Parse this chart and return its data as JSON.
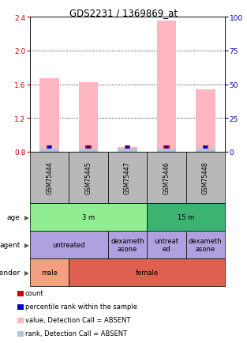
{
  "title": "GDS2231 / 1369869_at",
  "samples": [
    "GSM75444",
    "GSM75445",
    "GSM75447",
    "GSM75446",
    "GSM75448"
  ],
  "bar_values": [
    1.67,
    1.62,
    0.86,
    2.35,
    1.54
  ],
  "ylim_left": [
    0.8,
    2.4
  ],
  "ylim_right": [
    0,
    100
  ],
  "left_ticks": [
    0.8,
    1.2,
    1.6,
    2.0,
    2.4
  ],
  "right_ticks": [
    0,
    25,
    50,
    75,
    100
  ],
  "bar_color": "#FFB6C1",
  "rank_color": "#B0C4DE",
  "small_red_color": "#CC0000",
  "small_blue_color": "#0000CC",
  "age_labels": [
    [
      "3 m",
      0,
      3
    ],
    [
      "15 m",
      3,
      5
    ]
  ],
  "age_color_light": "#90EE90",
  "age_color_dark": "#3CB371",
  "agent_labels": [
    [
      "untreated",
      0,
      2
    ],
    [
      "dexameth\nasone",
      2,
      3
    ],
    [
      "untreat\ned",
      3,
      4
    ],
    [
      "dexameth\nasone",
      4,
      5
    ]
  ],
  "agent_color": "#B0A0E0",
  "gender_labels": [
    [
      "male",
      0,
      1
    ],
    [
      "female",
      1,
      5
    ]
  ],
  "gender_color_male": "#F4A080",
  "gender_color_female": "#E06050",
  "sample_box_color": "#B8B8B8",
  "left_tick_color": "#CC0000",
  "right_tick_color": "#0000AA",
  "legend_items": [
    {
      "color": "#CC0000",
      "label": "count"
    },
    {
      "color": "#0000CC",
      "label": "percentile rank within the sample"
    },
    {
      "color": "#FFB6C1",
      "label": "value, Detection Call = ABSENT"
    },
    {
      "color": "#B0C4DE",
      "label": "rank, Detection Call = ABSENT"
    }
  ]
}
